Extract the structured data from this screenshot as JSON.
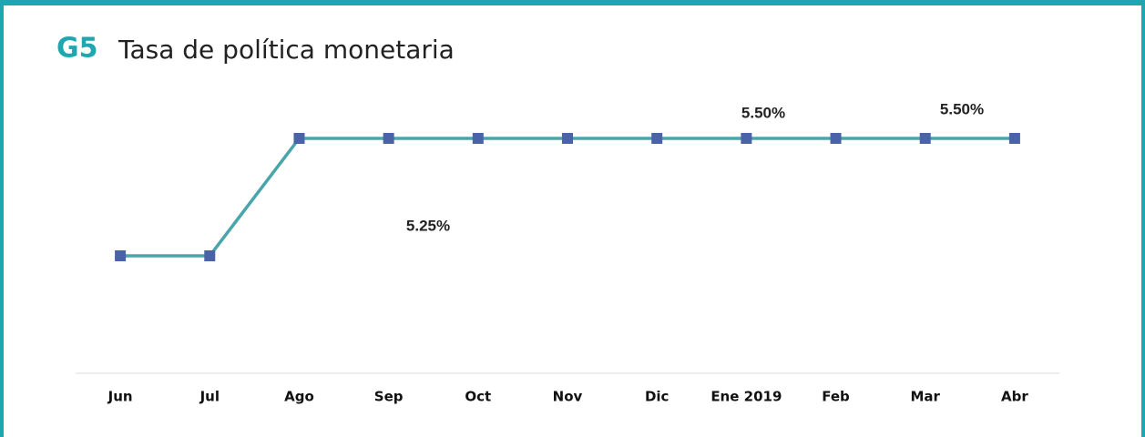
{
  "chart_data": {
    "type": "line",
    "title_code": "G5",
    "title": "Tasa de política monetaria",
    "categories": [
      "Jun",
      "Jul",
      "Ago",
      "Sep",
      "Oct",
      "Nov",
      "Dic",
      "Ene 2019",
      "Feb",
      "Mar",
      "Abr"
    ],
    "series": [
      {
        "name": "Tasa de política monetaria",
        "color": "#4aa5ab",
        "marker_color": "#4a62a8",
        "values": [
          5.25,
          5.25,
          5.5,
          5.5,
          5.5,
          5.5,
          5.5,
          5.5,
          5.5,
          5.5,
          5.5
        ]
      }
    ],
    "ylim": [
      5.0,
      5.6
    ],
    "annotations": [
      "5.25%",
      "5.50%",
      "5.50%"
    ]
  }
}
